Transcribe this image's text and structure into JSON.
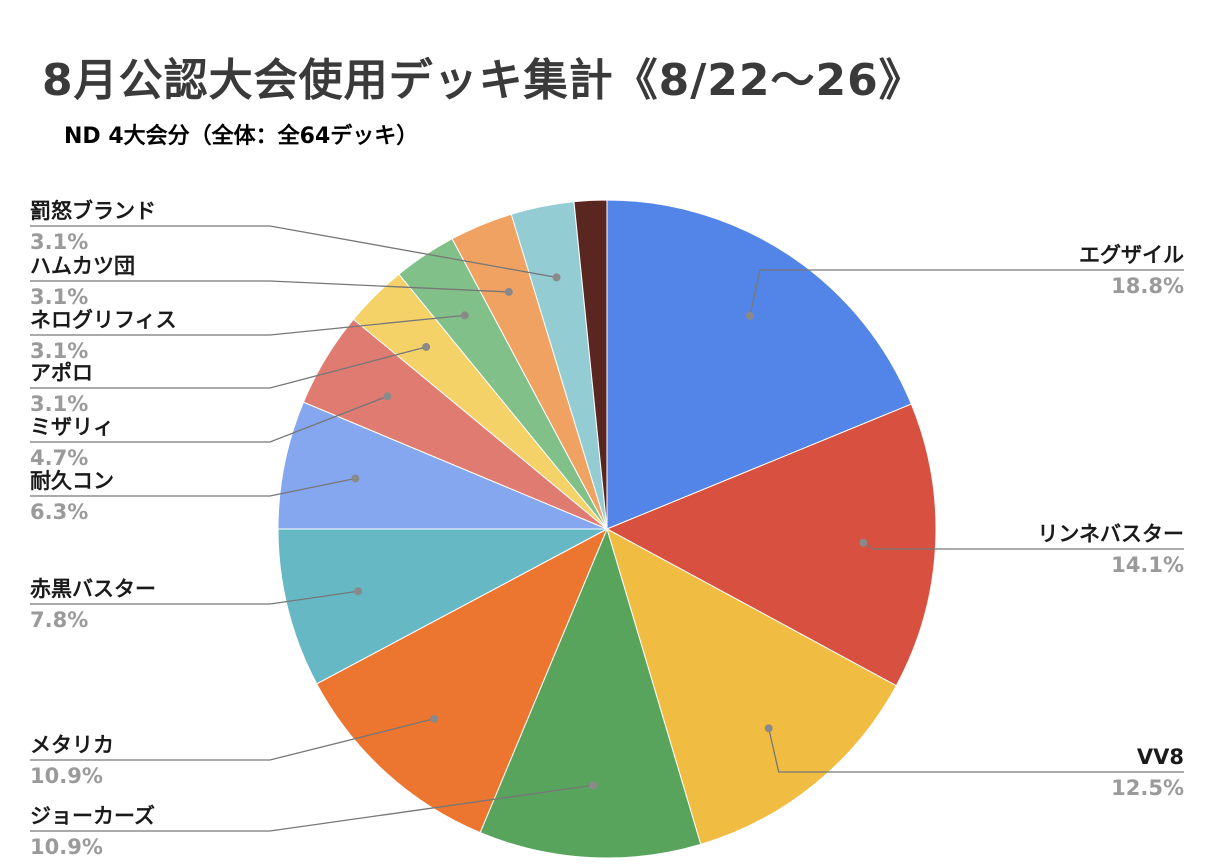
{
  "chart_data": {
    "type": "pie",
    "title": "8月公認大会使用デッキ集計《8/22〜26》",
    "subtitle": "ND 4大会分（全体：全64デッキ）",
    "start_angle_deg": 0,
    "direction": "clockwise",
    "slices": [
      {
        "label": "エグザイル",
        "value": 18.8,
        "display": "18.8%",
        "color": "#5384e8"
      },
      {
        "label": "リンネバスター",
        "value": 14.1,
        "display": "14.1%",
        "color": "#d85040"
      },
      {
        "label": "VV8",
        "value": 12.5,
        "display": "12.5%",
        "color": "#f0bd42"
      },
      {
        "label": "ジョーカーズ",
        "value": 10.9,
        "display": "10.9%",
        "color": "#58a45c"
      },
      {
        "label": "メタリカ",
        "value": 10.9,
        "display": "10.9%",
        "color": "#ec7530"
      },
      {
        "label": "赤黒バスター",
        "value": 7.8,
        "display": "7.8%",
        "color": "#66b9c4"
      },
      {
        "label": "耐久コン",
        "value": 6.3,
        "display": "6.3%",
        "color": "#84a7f0"
      },
      {
        "label": "ミザリィ",
        "value": 4.7,
        "display": "4.7%",
        "color": "#e07b72"
      },
      {
        "label": "アポロ",
        "value": 3.1,
        "display": "3.1%",
        "color": "#f4d268"
      },
      {
        "label": "ネログリフィス",
        "value": 3.1,
        "display": "3.1%",
        "color": "#82c08a"
      },
      {
        "label": "ハムカツ団",
        "value": 3.1,
        "display": "3.1%",
        "color": "#f0a262"
      },
      {
        "label": "罰怒ブランド",
        "value": 3.1,
        "display": "3.1%",
        "color": "#94ccd4"
      },
      {
        "label": "",
        "value": 1.6,
        "display": "",
        "color": "#5a2620"
      }
    ]
  }
}
